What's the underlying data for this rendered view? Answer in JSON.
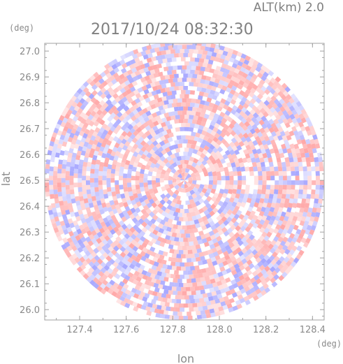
{
  "chart_data": {
    "type": "heatmap",
    "title": "2017/10/24 08:32:30",
    "subtitle": "ALT(km) 2.0",
    "xlabel": "lon",
    "ylabel": "lat",
    "x_unit": "(deg)",
    "y_unit": "(deg)",
    "xlim": [
      127.25,
      128.45
    ],
    "ylim": [
      25.96,
      27.03
    ],
    "x_ticks": [
      127.4,
      127.6,
      127.8,
      128.0,
      128.2,
      128.4
    ],
    "y_ticks": [
      26.0,
      26.1,
      26.2,
      26.3,
      26.4,
      26.5,
      26.6,
      26.7,
      26.8,
      26.9,
      27.0
    ],
    "x_tick_labels": [
      "127.4",
      "127.6",
      "127.8",
      "128.0",
      "128.2",
      "128.4"
    ],
    "y_tick_labels": [
      "26.0",
      "26.1",
      "26.2",
      "26.3",
      "26.4",
      "26.5",
      "26.6",
      "26.7",
      "26.8",
      "26.9",
      "27.0"
    ],
    "radar_center": {
      "lon": 127.85,
      "lat": 26.5
    },
    "radar_extent": {
      "dlon": 0.6,
      "dlat": 0.54
    },
    "colors": {
      "positive": "#ff9999",
      "negative": "#9999ff",
      "neutral": "#ffffff"
    }
  }
}
